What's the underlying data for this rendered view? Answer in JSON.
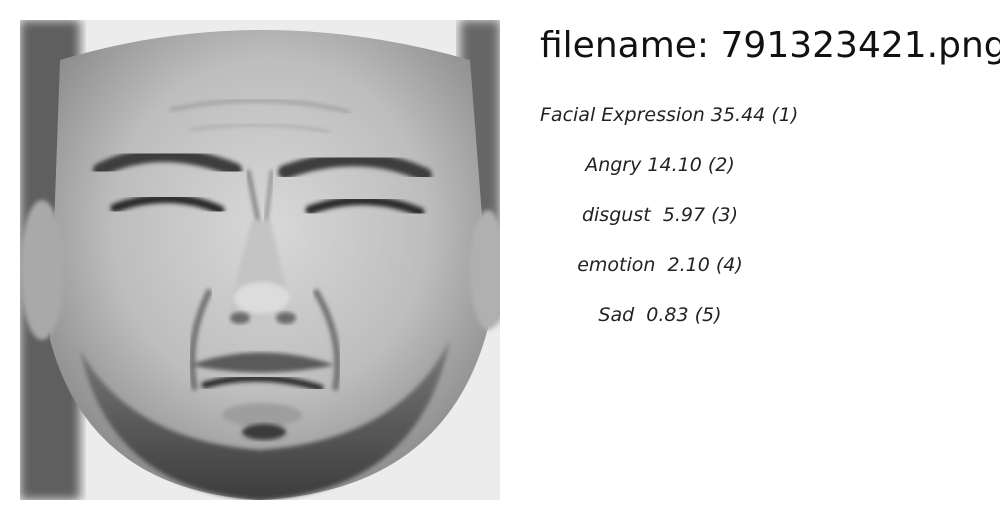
{
  "file": {
    "prefix": "filename:",
    "name": "791323421.png"
  },
  "predictions": [
    {
      "label": "Facial Expression",
      "score": "35.44",
      "rank": "(1)"
    },
    {
      "label": "Angry",
      "score": "14.10",
      "rank": "(2)"
    },
    {
      "label": "disgust",
      "score": " 5.97",
      "rank": "(3)"
    },
    {
      "label": "emotion",
      "score": " 2.10",
      "rank": "(4)"
    },
    {
      "label": "Sad",
      "score": " 0.83",
      "rank": "(5)"
    }
  ],
  "image": {
    "subject": "grayscale face photo with a disgusted expression",
    "tones": {
      "skin": "#c9c9c9",
      "shadow": "#5a5a5a",
      "hair": "#3a3a3a",
      "beard": "#4d4d4d",
      "background": "#e6e6e6"
    }
  }
}
